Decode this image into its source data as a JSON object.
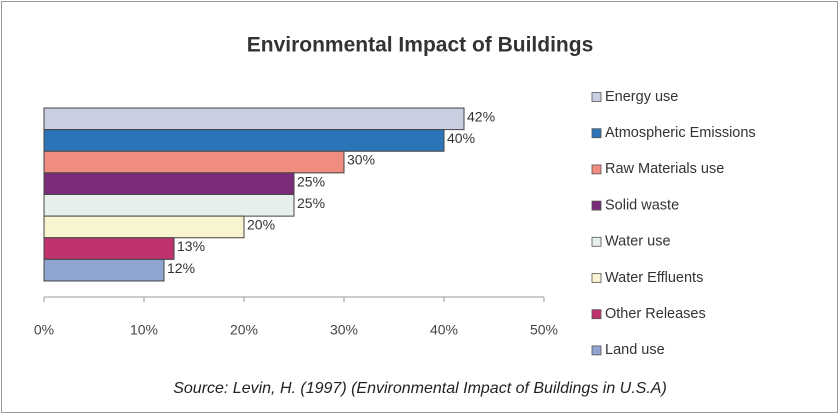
{
  "chart_data": {
    "type": "bar",
    "orientation": "horizontal",
    "title": "Environmental Impact of Buildings",
    "categories": [
      "Energy use",
      "Atmospheric Emissions",
      "Raw Materials use",
      "Solid waste",
      "Water use",
      "Water Effluents",
      "Other Releases",
      "Land use"
    ],
    "values": [
      42,
      40,
      30,
      25,
      25,
      20,
      13,
      12
    ],
    "value_labels": [
      "42%",
      "40%",
      "30%",
      "25%",
      "25%",
      "20%",
      "13%",
      "12%"
    ],
    "colors": [
      "#c8cfe0",
      "#2b74b8",
      "#f08c80",
      "#7a2c7a",
      "#e6eeee",
      "#f8f4d0",
      "#c0326e",
      "#8fa4d0"
    ],
    "xlim": [
      0,
      50
    ],
    "xticks": [
      {
        "value": 0,
        "label": "0%"
      },
      {
        "value": 10,
        "label": "10%"
      },
      {
        "value": 20,
        "label": "20%"
      },
      {
        "value": 30,
        "label": "30%"
      },
      {
        "value": 40,
        "label": "40%"
      },
      {
        "value": 50,
        "label": "50%"
      }
    ],
    "legend": "right",
    "source": "Source: Levin, H. (1997) (Environmental Impact of Buildings in U.S.A)"
  }
}
